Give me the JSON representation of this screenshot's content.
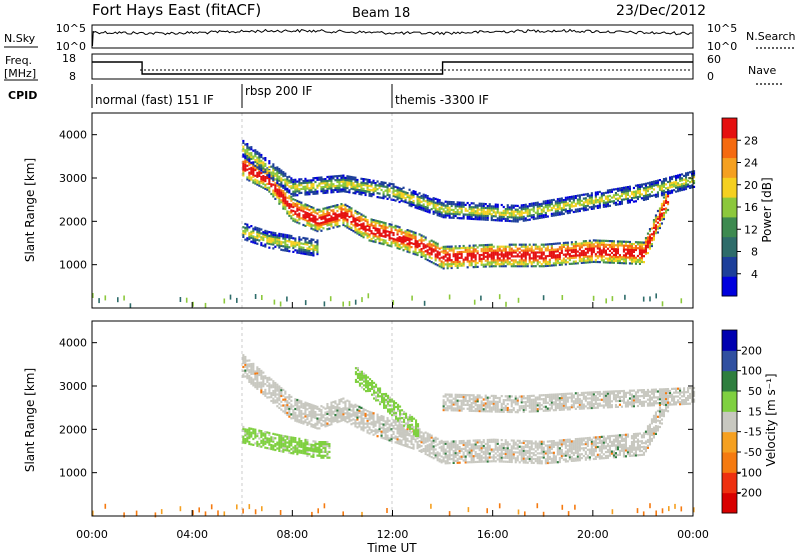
{
  "header": {
    "title": "Fort Hays East (fitACF)",
    "beam": "Beam 18",
    "date": "23/Dec/2012"
  },
  "sky_panel": {
    "left_label": "N.Sky",
    "right_label": "N.Search",
    "tick_top": "10^5",
    "tick_bottom": "10^0",
    "right_tick_top": "10^5",
    "right_tick_bottom": "10^0"
  },
  "freq_panel": {
    "left_label_1": "Freq.",
    "left_label_2": "[MHz]",
    "right_label": "Nave",
    "tick_top": "18",
    "tick_bottom": "8",
    "right_tick_top": "60",
    "right_tick_bottom": "0",
    "freq_steps": [
      {
        "t": 0.0,
        "mhz": 16.5
      },
      {
        "t": 2.0,
        "mhz": 10.5
      },
      {
        "t": 14.0,
        "mhz": 16.5
      },
      {
        "t": 24.0,
        "mhz": 16.5
      }
    ]
  },
  "cpid": {
    "label": "CPID",
    "segments": [
      {
        "start": 0.0,
        "end": 6.0,
        "name": "normal (fast) 151 IF"
      },
      {
        "start": 6.0,
        "end": 12.0,
        "name": "rbsp 200 IF"
      },
      {
        "start": 12.0,
        "end": 24.0,
        "name": "themis -3300 IF"
      }
    ]
  },
  "colors": {
    "power_scale": [
      "#0000dd",
      "#1d3f9a",
      "#2e6c6a",
      "#3d8a50",
      "#8cc83c",
      "#f5d020",
      "#f5a020",
      "#f56a10",
      "#e51010"
    ],
    "velocity_scale": [
      "#0000b0",
      "#3050a0",
      "#2e7e3e",
      "#7fd040",
      "#c8c8c0",
      "#f5a020",
      "#f57a10",
      "#ee3010",
      "#d80000"
    ]
  },
  "chart_data": [
    {
      "type": "heatmap",
      "name": "power",
      "title": "",
      "xlabel": "",
      "ylabel": "Slant Range [km]",
      "xlim": [
        0,
        24
      ],
      "ylim": [
        0,
        4500
      ],
      "y_ticks": [
        "1000",
        "2000",
        "3000",
        "4000"
      ],
      "colorbar": {
        "label": "Power [dB]",
        "ticks": [
          "4",
          "8",
          "12",
          "16",
          "20",
          "24",
          "28"
        ],
        "range": [
          0,
          30
        ]
      },
      "features": [
        {
          "kind": "main_band",
          "start_time": 6.0,
          "end_time": 23.0,
          "center_range_km": [
            [
              6.0,
              3300
            ],
            [
              7.0,
              3000
            ],
            [
              8.0,
              2300
            ],
            [
              9.0,
              2050
            ],
            [
              10.0,
              2200
            ],
            [
              11.0,
              1850
            ],
            [
              12.0,
              1700
            ],
            [
              13.0,
              1500
            ],
            [
              14.0,
              1200
            ],
            [
              16.0,
              1250
            ],
            [
              18.0,
              1250
            ],
            [
              20.0,
              1350
            ],
            [
              22.0,
              1300
            ],
            [
              23.0,
              2600
            ]
          ],
          "power_db": 26
        },
        {
          "kind": "upper_band",
          "start_time": 6.0,
          "end_time": 24.0,
          "center_range_km": [
            [
              6.0,
              3700
            ],
            [
              8.0,
              2800
            ],
            [
              10.0,
              2900
            ],
            [
              12.0,
              2700
            ],
            [
              14.0,
              2300
            ],
            [
              17.0,
              2200
            ],
            [
              20.0,
              2500
            ],
            [
              22.0,
              2700
            ],
            [
              24.0,
              3000
            ]
          ],
          "power_db": 14
        },
        {
          "kind": "lower_band",
          "start_time": 6.0,
          "end_time": 9.0,
          "center_range_km": [
            [
              6.0,
              1800
            ],
            [
              7.0,
              1600
            ],
            [
              8.0,
              1500
            ],
            [
              9.0,
              1400
            ]
          ],
          "power_db": 12
        },
        {
          "kind": "ground_scatter_near",
          "start_time": 0.0,
          "end_time": 24.0,
          "range_km": [
            100,
            350
          ],
          "power_db": 8
        }
      ]
    },
    {
      "type": "heatmap",
      "name": "velocity",
      "title": "",
      "xlabel": "Time UT",
      "ylabel": "Slant Range [km]",
      "xlim": [
        0,
        24
      ],
      "ylim": [
        0,
        4500
      ],
      "x_ticks": [
        "00:00",
        "04:00",
        "08:00",
        "12:00",
        "16:00",
        "20:00",
        "00:00"
      ],
      "y_ticks": [
        "1000",
        "2000",
        "3000",
        "4000"
      ],
      "colorbar": {
        "label": "Velocity [m s⁻¹]",
        "ticks": [
          "200",
          "100",
          "50",
          "15",
          "-15",
          "-50",
          "-100",
          "-200"
        ],
        "range": [
          -250,
          250
        ]
      },
      "features": [
        {
          "kind": "ground_scatter_main",
          "start_time": 6.0,
          "end_time": 23.0,
          "center_range_km": [
            [
              6.0,
              3500
            ],
            [
              7.0,
              3000
            ],
            [
              8.0,
              2500
            ],
            [
              9.0,
              2300
            ],
            [
              10.0,
              2500
            ],
            [
              11.0,
              2200
            ],
            [
              12.0,
              2000
            ],
            [
              13.0,
              1800
            ],
            [
              14.0,
              1500
            ],
            [
              16.0,
              1550
            ],
            [
              18.0,
              1500
            ],
            [
              20.0,
              1600
            ],
            [
              22.0,
              1700
            ],
            [
              23.0,
              2700
            ]
          ],
          "velocity": 0
        },
        {
          "kind": "ground_scatter_upper",
          "start_time": 14.0,
          "end_time": 24.0,
          "center_range_km": [
            [
              14.0,
              2650
            ],
            [
              17.0,
              2600
            ],
            [
              20.0,
              2700
            ],
            [
              22.0,
              2750
            ],
            [
              24.0,
              2800
            ]
          ],
          "velocity": 0
        },
        {
          "kind": "green_bands",
          "start_time": 6.0,
          "end_time": 9.5,
          "center_range_km": [
            [
              6.0,
              1900
            ],
            [
              7.5,
              1700
            ],
            [
              9.0,
              1550
            ]
          ],
          "velocity": 40
        },
        {
          "kind": "green_diagonal",
          "start_time": 10.5,
          "end_time": 13.0,
          "center_range_km": [
            [
              10.5,
              3300
            ],
            [
              12.0,
              2500
            ],
            [
              13.0,
              2000
            ]
          ],
          "velocity": 40
        },
        {
          "kind": "near_orange",
          "start_time": 0.0,
          "end_time": 24.0,
          "range_km": [
            80,
            300
          ],
          "velocity": -60
        }
      ]
    }
  ]
}
